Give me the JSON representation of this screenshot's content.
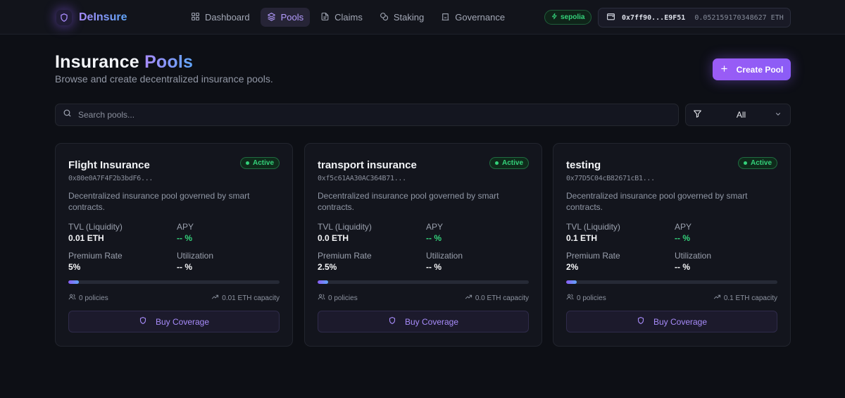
{
  "brand": {
    "name": "DeInsure"
  },
  "nav": {
    "items": [
      {
        "label": "Dashboard",
        "icon": "grid-icon"
      },
      {
        "label": "Pools",
        "icon": "layers-icon"
      },
      {
        "label": "Claims",
        "icon": "document-icon"
      },
      {
        "label": "Staking",
        "icon": "coins-icon"
      },
      {
        "label": "Governance",
        "icon": "landmark-icon"
      }
    ],
    "active": "Pools"
  },
  "network": {
    "label": "sepolia"
  },
  "wallet": {
    "address": "0x7ff90...E9F51",
    "balance": "0.052159170348627 ETH"
  },
  "header": {
    "title_main": "Insurance",
    "title_accent": "Pools",
    "subtitle": "Browse and create decentralized insurance pools.",
    "create_label": "Create Pool"
  },
  "search": {
    "placeholder": "Search pools..."
  },
  "filter": {
    "value": "All"
  },
  "labels": {
    "tvl": "TVL (Liquidity)",
    "apy": "APY",
    "premium": "Premium Rate",
    "utilization": "Utilization",
    "buy": "Buy Coverage"
  },
  "pools": [
    {
      "name": "Flight Insurance",
      "address": "0x80e0A7F4F2b3bdF6...",
      "status": "Active",
      "description": "Decentralized insurance pool governed by smart contracts.",
      "tvl": "0.01 ETH",
      "apy": "-- %",
      "premium": "5%",
      "utilization": "-- %",
      "progress": 0.05,
      "policies": "0 policies",
      "capacity": "0.01 ETH capacity"
    },
    {
      "name": "transport insurance",
      "address": "0xf5c61AA30AC364B71...",
      "status": "Active",
      "description": "Decentralized insurance pool governed by smart contracts.",
      "tvl": "0.0 ETH",
      "apy": "-- %",
      "premium": "2.5%",
      "utilization": "-- %",
      "progress": 0.05,
      "policies": "0 policies",
      "capacity": "0.0 ETH capacity"
    },
    {
      "name": "testing",
      "address": "0x77D5C04cB82671cB1...",
      "status": "Active",
      "description": "Decentralized insurance pool governed by smart contracts.",
      "tvl": "0.1 ETH",
      "apy": "-- %",
      "premium": "2%",
      "utilization": "-- %",
      "progress": 0.05,
      "policies": "0 policies",
      "capacity": "0.1 ETH capacity"
    }
  ],
  "colors": {
    "accent": "#8b5cf6",
    "accent_blue": "#60a5fa",
    "success": "#34d27b",
    "background": "#0d0f15"
  }
}
